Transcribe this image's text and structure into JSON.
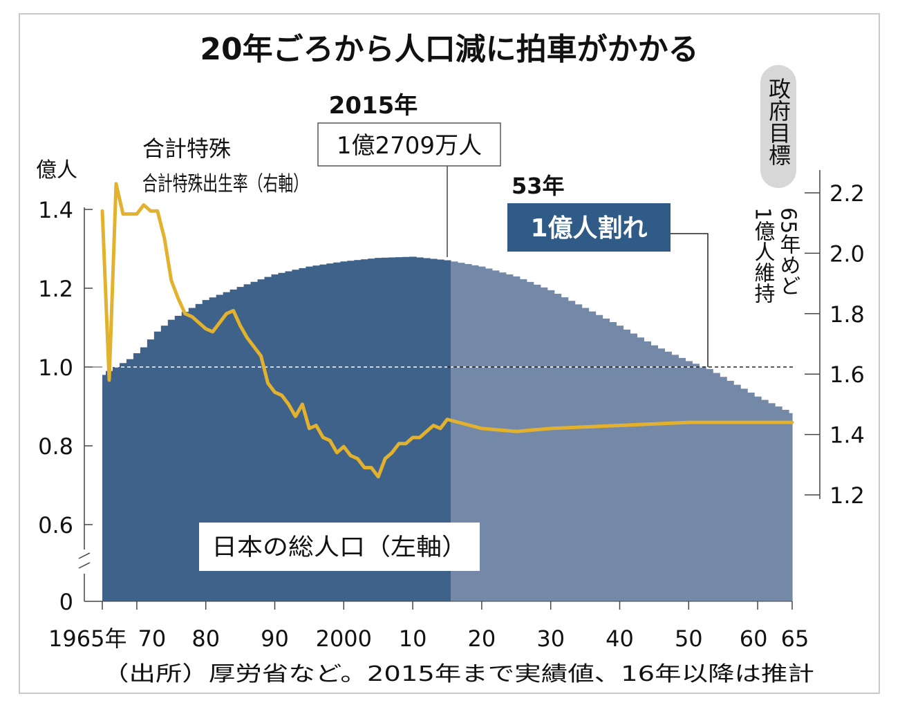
{
  "chart_data": {
    "type": "area",
    "title": "20年ごろから人口減に拍車がかかる",
    "source": "（出所）厚労省など。2015年まで実績値、16年以降は推計",
    "x_start_label": "1965年",
    "x_tick_labels": [
      "70",
      "80",
      "90",
      "2000",
      "10",
      "20",
      "30",
      "40",
      "50",
      "60",
      "65"
    ],
    "x_ticks": [
      1970,
      1980,
      1990,
      2000,
      2010,
      2020,
      2030,
      2040,
      2050,
      2060,
      2065
    ],
    "left_axis": {
      "unit": "億人",
      "tick_labels": [
        "0",
        "0.6",
        "0.8",
        "1.0",
        "1.2",
        "1.4"
      ],
      "ticks": [
        0.6,
        0.8,
        1.0,
        1.2,
        1.4
      ],
      "ylim": [
        0.46,
        1.4
      ],
      "broken": true
    },
    "right_axis": {
      "tick_labels": [
        "1.2",
        "1.4",
        "1.6",
        "1.8",
        "2.0",
        "2.2"
      ],
      "ticks": [
        1.2,
        1.4,
        1.6,
        1.8,
        2.0,
        2.2
      ],
      "ylim": [
        1.2,
        2.2
      ]
    },
    "reference_line": {
      "value": 1.0,
      "axis": "left"
    },
    "population_series": {
      "name": "日本の総人口（左軸）",
      "actual_until": 2015,
      "colors": {
        "actual": "#3e6289",
        "projected": "#7488a8"
      },
      "x": [
        1965,
        1967,
        1969,
        1971,
        1973,
        1975,
        1977,
        1980,
        1983,
        1986,
        1990,
        1995,
        2000,
        2005,
        2010,
        2015,
        2020,
        2025,
        2030,
        2035,
        2040,
        2045,
        2050,
        2053,
        2055,
        2060,
        2065
      ],
      "y": [
        0.98,
        1.0,
        1.02,
        1.05,
        1.09,
        1.12,
        1.14,
        1.17,
        1.19,
        1.21,
        1.235,
        1.255,
        1.268,
        1.277,
        1.28,
        1.271,
        1.255,
        1.23,
        1.195,
        1.15,
        1.105,
        1.055,
        1.015,
        0.995,
        0.975,
        0.925,
        0.883
      ]
    },
    "fertility_series": {
      "name": "合計特殊出生率（右軸）",
      "color": "#e2b22e",
      "x": [
        1965,
        1966,
        1967,
        1968,
        1969,
        1970,
        1971,
        1972,
        1973,
        1974,
        1975,
        1976,
        1977,
        1978,
        1979,
        1980,
        1981,
        1982,
        1983,
        1984,
        1985,
        1986,
        1987,
        1988,
        1989,
        1990,
        1991,
        1992,
        1993,
        1994,
        1995,
        1996,
        1997,
        1998,
        1999,
        2000,
        2001,
        2002,
        2003,
        2004,
        2005,
        2006,
        2007,
        2008,
        2009,
        2010,
        2011,
        2012,
        2013,
        2014,
        2015,
        2020,
        2025,
        2030,
        2040,
        2050,
        2060,
        2065
      ],
      "y": [
        2.14,
        1.58,
        2.23,
        2.13,
        2.13,
        2.13,
        2.16,
        2.14,
        2.14,
        2.05,
        1.91,
        1.85,
        1.8,
        1.79,
        1.77,
        1.75,
        1.74,
        1.77,
        1.8,
        1.81,
        1.76,
        1.72,
        1.69,
        1.66,
        1.57,
        1.54,
        1.53,
        1.5,
        1.46,
        1.5,
        1.42,
        1.43,
        1.39,
        1.38,
        1.34,
        1.36,
        1.33,
        1.32,
        1.29,
        1.29,
        1.26,
        1.32,
        1.34,
        1.37,
        1.37,
        1.39,
        1.39,
        1.41,
        1.43,
        1.42,
        1.45,
        1.42,
        1.41,
        1.42,
        1.43,
        1.44,
        1.44,
        1.44
      ]
    },
    "annotations": {
      "year_2015": "2015年",
      "pop_2015": "1億2709万人",
      "year_53": "53年",
      "below_100m": "1億人割れ",
      "govt_target": "政府目標",
      "target_line1": "1億人維持",
      "target_line2": "65年めど"
    }
  }
}
